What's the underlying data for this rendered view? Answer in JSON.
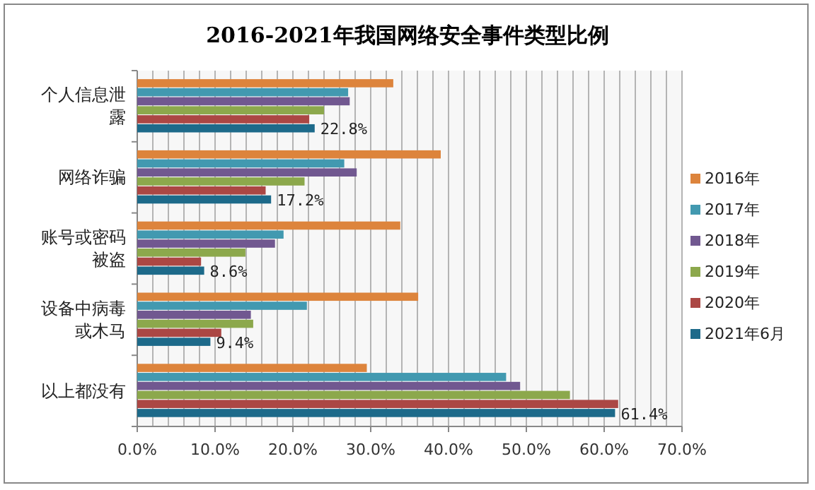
{
  "chart_data": {
    "type": "bar",
    "orientation": "horizontal",
    "title": "2016-2021年我国网络安全事件类型比例",
    "categories": [
      "个人信息泄露",
      "网络诈骗",
      "账号或密码被盗",
      "设备中病毒或木马",
      "以上都没有"
    ],
    "series": [
      {
        "name": "2016年",
        "color": "#dd843c",
        "values": [
          32.9,
          39.0,
          33.8,
          36.1,
          29.5
        ]
      },
      {
        "name": "2017年",
        "color": "#4299b0",
        "values": [
          27.1,
          26.6,
          18.8,
          21.8,
          47.4
        ]
      },
      {
        "name": "2018年",
        "color": "#715890",
        "values": [
          27.3,
          28.2,
          17.7,
          14.6,
          49.2
        ]
      },
      {
        "name": "2019年",
        "color": "#8ca84c",
        "values": [
          24.0,
          21.5,
          13.9,
          14.9,
          55.6
        ]
      },
      {
        "name": "2020年",
        "color": "#ab4744",
        "values": [
          22.1,
          16.5,
          8.2,
          10.8,
          61.8
        ]
      },
      {
        "name": "2021年6月",
        "color": "#1d6a8a",
        "values": [
          22.8,
          17.2,
          8.6,
          9.4,
          61.4
        ],
        "value_labels": [
          "22.8%",
          "17.2%",
          "8.6%",
          "9.4%",
          "61.4%"
        ]
      }
    ],
    "xlim": [
      0,
      70
    ],
    "xticks": [
      {
        "value": 0,
        "label": "0.0%"
      },
      {
        "value": 2,
        "label": null
      },
      {
        "value": 4,
        "label": null
      },
      {
        "value": 6,
        "label": null
      },
      {
        "value": 8,
        "label": null
      },
      {
        "value": 10,
        "label": "10.0%"
      },
      {
        "value": 12,
        "label": null
      },
      {
        "value": 14,
        "label": null
      },
      {
        "value": 16,
        "label": null
      },
      {
        "value": 18,
        "label": null
      },
      {
        "value": 20,
        "label": "20.0%"
      },
      {
        "value": 22,
        "label": null
      },
      {
        "value": 24,
        "label": null
      },
      {
        "value": 26,
        "label": null
      },
      {
        "value": 28,
        "label": null
      },
      {
        "value": 30,
        "label": "30.0%"
      },
      {
        "value": 32,
        "label": null
      },
      {
        "value": 34,
        "label": null
      },
      {
        "value": 36,
        "label": null
      },
      {
        "value": 38,
        "label": null
      },
      {
        "value": 40,
        "label": "40.0%"
      },
      {
        "value": 42,
        "label": null
      },
      {
        "value": 44,
        "label": null
      },
      {
        "value": 46,
        "label": null
      },
      {
        "value": 48,
        "label": null
      },
      {
        "value": 50,
        "label": "50.0%"
      },
      {
        "value": 52,
        "label": null
      },
      {
        "value": 54,
        "label": null
      },
      {
        "value": 56,
        "label": null
      },
      {
        "value": 58,
        "label": null
      },
      {
        "value": 60,
        "label": "60.0%"
      },
      {
        "value": 62,
        "label": null
      },
      {
        "value": 64,
        "label": null
      },
      {
        "value": 66,
        "label": null
      },
      {
        "value": 68,
        "label": null
      },
      {
        "value": 70,
        "label": "70.0%"
      }
    ],
    "grid": "x",
    "legend": "right"
  }
}
